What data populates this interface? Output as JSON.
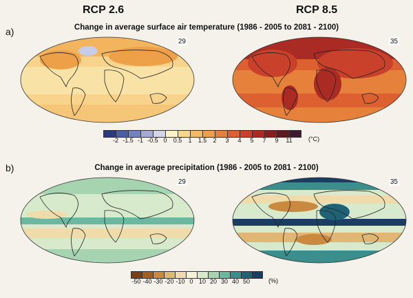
{
  "scenarios": {
    "left": "RCP 2.6",
    "right": "RCP 8.5"
  },
  "panel_a": {
    "letter": "a)",
    "title": "Change in average surface air temperature (1986 - 2005 to 2081 - 2100)",
    "left_count": "29",
    "right_count": "35",
    "colorbar": {
      "colors": [
        "#2b3a80",
        "#4a5ea6",
        "#7383c0",
        "#a4acd6",
        "#d3d6ea",
        "#fbf2c8",
        "#f8d98c",
        "#f3bc62",
        "#eda047",
        "#e5813a",
        "#dc6030",
        "#c9412a",
        "#a92b23",
        "#8a1c1d",
        "#5e1a20",
        "#3d1a2f"
      ],
      "ticks": [
        "-2",
        "-1.5",
        "-1",
        "-0.5",
        "0",
        "0.5",
        "1",
        "1.5",
        "2",
        "3",
        "4",
        "5",
        "7",
        "9",
        "11"
      ],
      "unit": "(°C)"
    }
  },
  "panel_b": {
    "letter": "b)",
    "title": "Change in average precipitation (1986 - 2005 to 2081 - 2100)",
    "left_count": "29",
    "right_count": "35",
    "colorbar": {
      "colors": [
        "#7a3e12",
        "#a45e22",
        "#c98a40",
        "#e0b673",
        "#efdcaa",
        "#f7f1d8",
        "#d8eacc",
        "#a6d4b0",
        "#6ab89f",
        "#3a8f8c",
        "#1f6276",
        "#193e62"
      ],
      "ticks": [
        "-50",
        "-40",
        "-30",
        "-20",
        "-10",
        "0",
        "10",
        "20",
        "30",
        "40",
        "50"
      ],
      "unit": "(%)"
    }
  }
}
